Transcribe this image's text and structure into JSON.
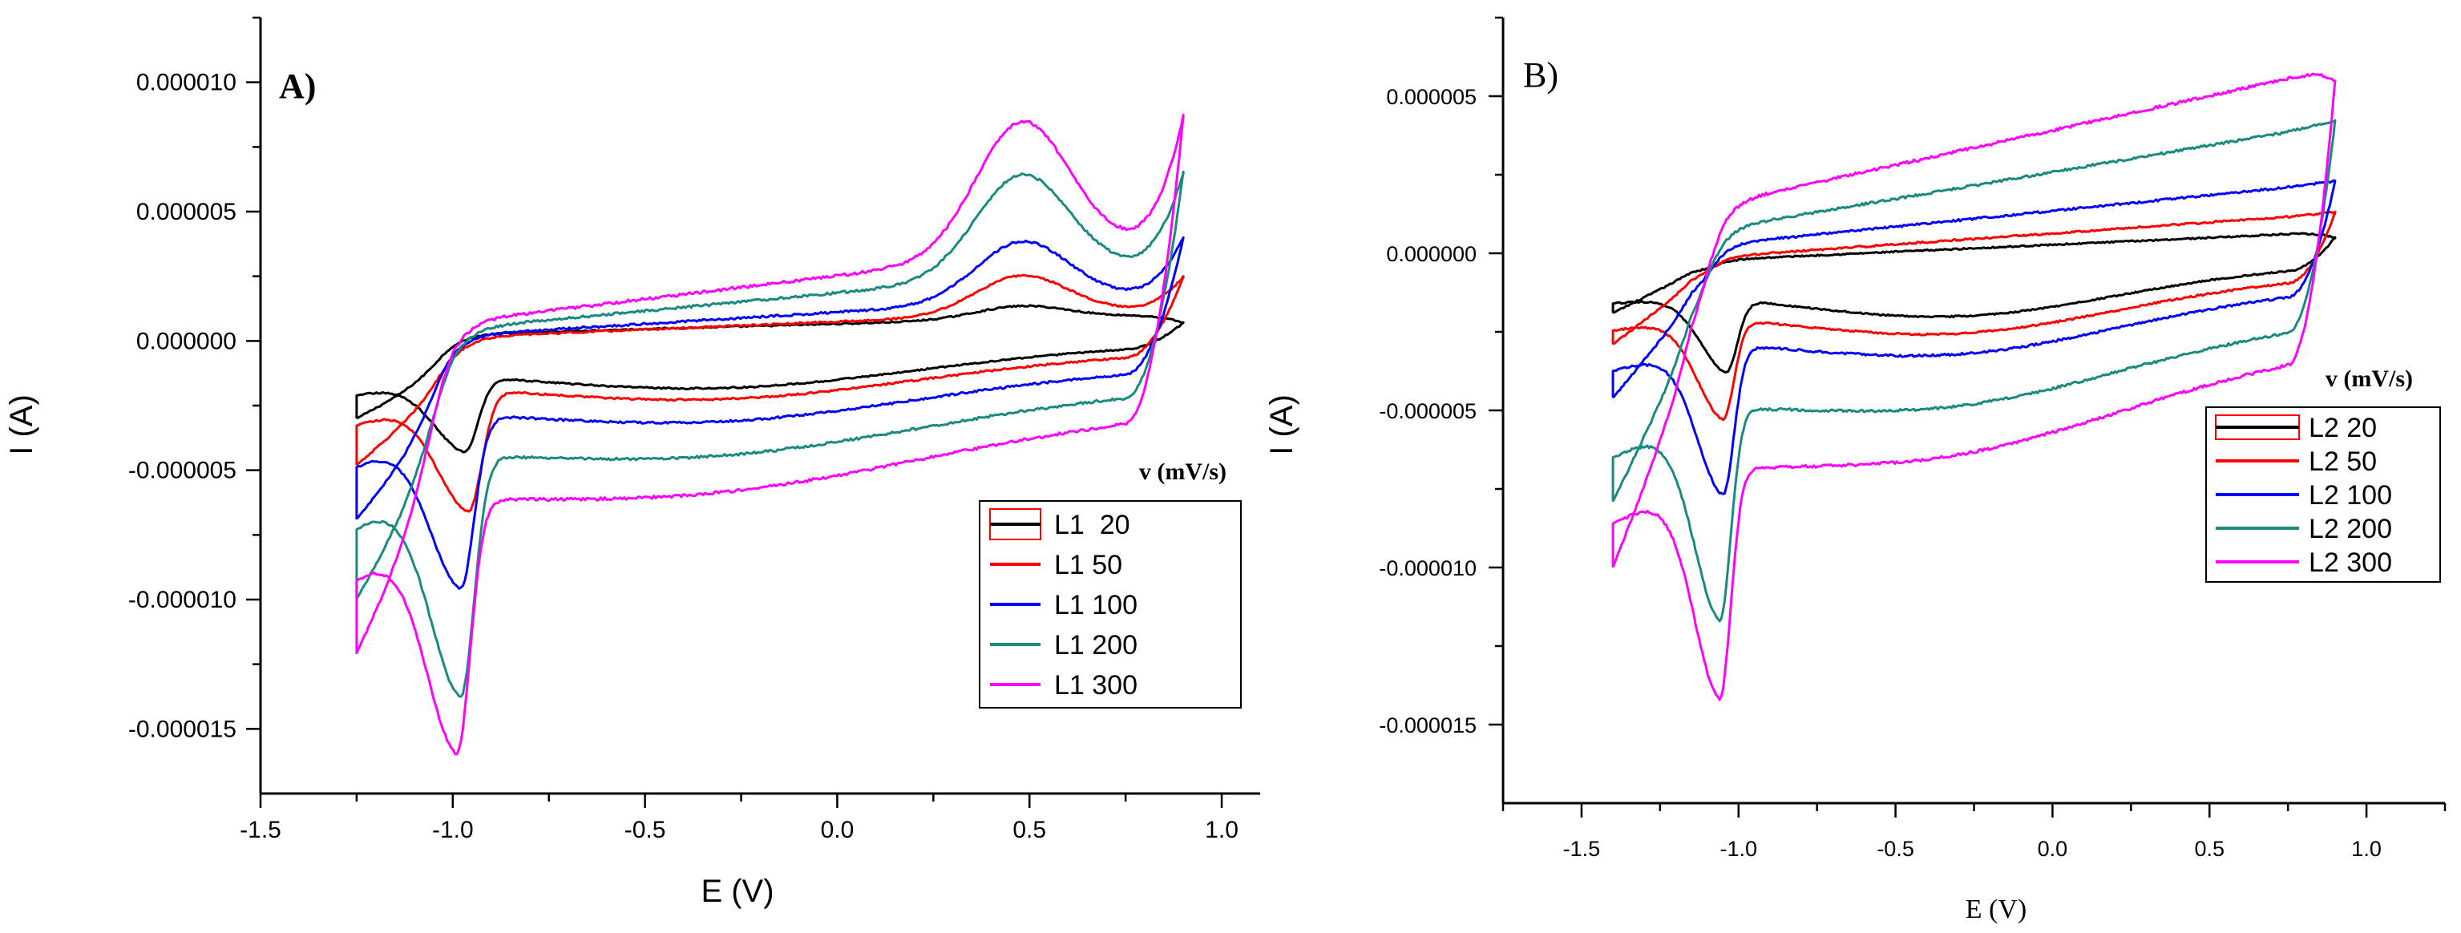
{
  "chart_data": [
    {
      "type": "line",
      "panel_label": "A)",
      "xlabel": "E (V)",
      "ylabel": "I (A)",
      "xlim": [
        -1.5,
        1.1
      ],
      "ylim": [
        -1.75e-05,
        1.25e-05
      ],
      "xticks": [
        -1.5,
        -1.0,
        -0.5,
        0.0,
        0.5,
        1.0
      ],
      "xtick_labels": [
        "-1.5",
        "-1.0",
        "-0.5",
        "0.0",
        "0.5",
        "1.0"
      ],
      "yticks": [
        -1.5e-05,
        -1e-05,
        -5e-06,
        0.0,
        5e-06,
        1e-05
      ],
      "ytick_labels": [
        "-0.000015",
        "-0.000010",
        "-0.000005",
        "0.000000",
        "0.000005",
        "0.000010"
      ],
      "legend_title": "v (mV/s)",
      "legend_position": "bottom-right",
      "series": [
        {
          "name": "L1  20",
          "color": "#000000",
          "x_min": -1.25,
          "x_max": 0.9,
          "peak_x": -0.97,
          "forward_start": 3e-07,
          "slope": 4e-07,
          "ox_peak": 8e-07,
          "ox_end": 7e-07,
          "cat_peak": -3.8e-06,
          "rev_start": -3e-06,
          "rev_base": -5e-07,
          "rev_slope": 4e-07
        },
        {
          "name": "L1 50",
          "color": "#ff0000",
          "x_min": -1.25,
          "x_max": 0.9,
          "peak_x": -0.96,
          "forward_start": 2e-07,
          "slope": 6e-07,
          "ox_peak": 1.8e-06,
          "ox_end": 2.5e-06,
          "cat_peak": -6.1e-06,
          "rev_start": -4.8e-06,
          "rev_base": -9e-07,
          "rev_slope": 5e-07
        },
        {
          "name": "L1 100",
          "color": "#0000ff",
          "x_min": -1.25,
          "x_max": 0.9,
          "peak_x": -0.98,
          "forward_start": 3e-07,
          "slope": 9e-07,
          "ox_peak": 2.6e-06,
          "ox_end": 4e-06,
          "cat_peak": -9.1e-06,
          "rev_start": -6.9e-06,
          "rev_base": -1.7e-06,
          "rev_slope": 7e-07
        },
        {
          "name": "L1 200",
          "color": "#1a8a80",
          "x_min": -1.25,
          "x_max": 0.9,
          "peak_x": -0.98,
          "forward_start": 6e-07,
          "slope": 1.4e-06,
          "ox_peak": 4.2e-06,
          "ox_end": 6.5e-06,
          "cat_peak": -1.33e-05,
          "rev_start": -1e-05,
          "rev_base": -2.9e-06,
          "rev_slope": 1.1e-06
        },
        {
          "name": "L1 300",
          "color": "#ff00ff",
          "x_min": -1.25,
          "x_max": 0.9,
          "peak_x": -0.99,
          "forward_start": 9e-07,
          "slope": 1.8e-06,
          "ox_peak": 5.4e-06,
          "ox_end": 8.7e-06,
          "cat_peak": -1.55e-05,
          "rev_start": -1.21e-05,
          "rev_base": -4.2e-06,
          "rev_slope": 1.5e-06
        }
      ]
    },
    {
      "type": "line",
      "panel_label": "B)",
      "xlabel": "E (V)",
      "ylabel": "I (A)",
      "xlim": [
        -1.75,
        1.25
      ],
      "ylim": [
        -1.75e-05,
        7.5e-06
      ],
      "xticks": [
        -1.5,
        -1.0,
        -0.5,
        0.0,
        0.5,
        1.0
      ],
      "xtick_labels": [
        "-1.5",
        "-1.0",
        "-0.5",
        "0.0",
        "0.5",
        "1.0"
      ],
      "yticks": [
        -1.5e-05,
        -1e-05,
        -5e-06,
        0.0,
        5e-06
      ],
      "ytick_labels": [
        "-0.000015",
        "-0.000010",
        "-0.000005",
        "0.000000",
        "0.000005"
      ],
      "legend_title": "v (mV/s)",
      "legend_position": "right",
      "series": [
        {
          "name": "L2 20",
          "color": "#000000",
          "x_min": -1.4,
          "x_max": 0.9,
          "peak_x": -1.04,
          "forward_start": -2e-07,
          "slope": 4.5e-07,
          "ox_end": 5e-07,
          "cat_peak": -3.4e-06,
          "rev_start": -1.9e-06,
          "rev_base": -7e-07,
          "rev_slope": 3.5e-07
        },
        {
          "name": "L2 50",
          "color": "#ff0000",
          "x_min": -1.4,
          "x_max": 0.9,
          "peak_x": -1.05,
          "forward_start": -1e-07,
          "slope": 7e-07,
          "ox_end": 1.3e-06,
          "cat_peak": -4.9e-06,
          "rev_start": -2.9e-06,
          "rev_base": -1.2e-06,
          "rev_slope": 5e-07
        },
        {
          "name": "L2 100",
          "color": "#0000ff",
          "x_min": -1.4,
          "x_max": 0.9,
          "peak_x": -1.05,
          "forward_start": 3e-07,
          "slope": 1e-06,
          "ox_end": 2.3e-06,
          "cat_peak": -7.3e-06,
          "rev_start": -4.6e-06,
          "rev_base": -1.8e-06,
          "rev_slope": 7e-07
        },
        {
          "name": "L2 200",
          "color": "#1a8a80",
          "x_min": -1.4,
          "x_max": 0.9,
          "peak_x": -1.06,
          "forward_start": 8e-07,
          "slope": 1.7e-06,
          "ox_end": 4.2e-06,
          "cat_peak": -1.13e-05,
          "rev_start": -7.9e-06,
          "rev_base": -3.3e-06,
          "rev_slope": 1.2e-06
        },
        {
          "name": "L2 300",
          "color": "#ff00ff",
          "x_min": -1.4,
          "x_max": 0.9,
          "peak_x": -1.06,
          "forward_start": 1.6e-06,
          "slope": 2.2e-06,
          "ox_end": 5.5e-06,
          "cat_peak": -1.38e-05,
          "rev_start": -1e-05,
          "rev_base": -4.7e-06,
          "rev_slope": 1.7e-06
        }
      ]
    }
  ]
}
